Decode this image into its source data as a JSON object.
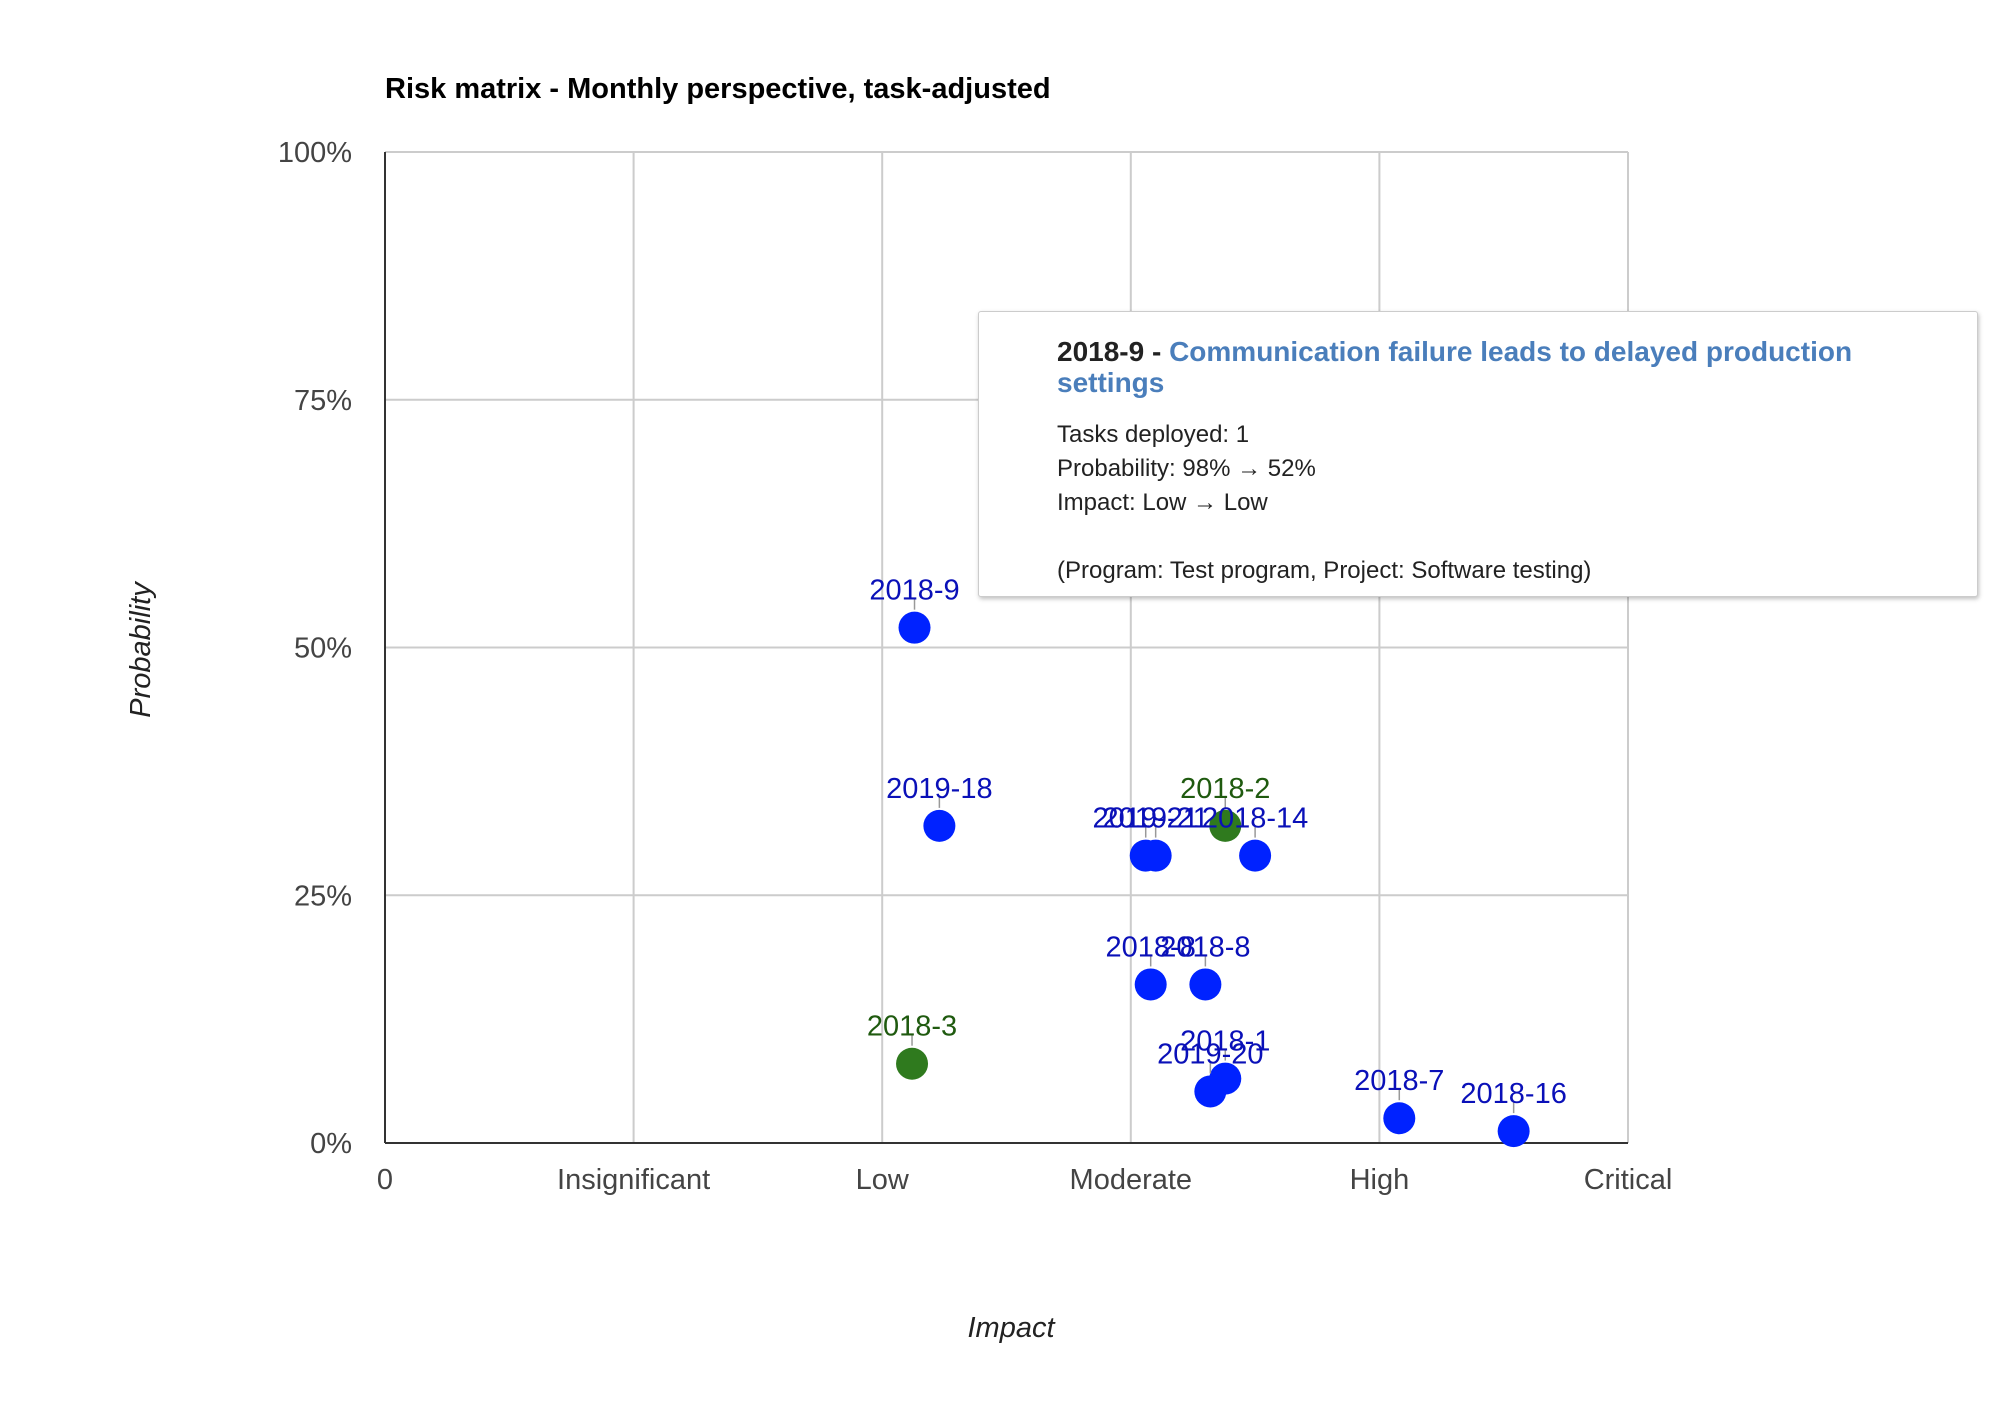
{
  "chart_data": {
    "type": "scatter",
    "title": "Risk matrix - Monthly perspective, task-adjusted",
    "xlabel": "Impact",
    "ylabel": "Probability",
    "x_ticks": [
      "0",
      "Insignificant",
      "Low",
      "Moderate",
      "High",
      "Critical"
    ],
    "y_ticks": [
      "0%",
      "25%",
      "50%",
      "75%",
      "100%"
    ],
    "xlim": [
      0,
      5
    ],
    "ylim": [
      0,
      100
    ],
    "grid": true,
    "colors": {
      "blue": "#0022ff",
      "green": "#2f7a1e",
      "blue_label": "#0a10b8",
      "green_label": "#1f5a0f"
    },
    "points": [
      {
        "label": "2018-9",
        "x": 2.13,
        "y": 52,
        "color": "blue"
      },
      {
        "label": "2019-18",
        "x": 2.23,
        "y": 32,
        "color": "blue"
      },
      {
        "label": "2018-2",
        "x": 3.38,
        "y": 32,
        "color": "green"
      },
      {
        "label": "2019-21",
        "x": 3.06,
        "y": 29,
        "color": "blue"
      },
      {
        "label": "2019-21",
        "x": 3.1,
        "y": 29,
        "color": "blue"
      },
      {
        "label": "2018-14",
        "x": 3.5,
        "y": 29,
        "color": "blue"
      },
      {
        "label": "2018-8",
        "x": 3.08,
        "y": 16,
        "color": "blue"
      },
      {
        "label": "2018-8",
        "x": 3.3,
        "y": 16,
        "color": "blue"
      },
      {
        "label": "2018-3",
        "x": 2.12,
        "y": 8,
        "color": "green"
      },
      {
        "label": "2018-1",
        "x": 3.38,
        "y": 6.5,
        "color": "blue"
      },
      {
        "label": "2019-20",
        "x": 3.32,
        "y": 5.2,
        "color": "blue"
      },
      {
        "label": "2018-7",
        "x": 4.08,
        "y": 2.5,
        "color": "blue"
      },
      {
        "label": "2018-16",
        "x": 4.54,
        "y": 1.2,
        "color": "blue"
      }
    ]
  },
  "tooltip": {
    "id": "2018-9 - ",
    "title": "Communication failure leads to delayed production settings",
    "lines": [
      "Tasks deployed: 1",
      "Probability: 98% → 52%",
      "Impact: Low → Low"
    ],
    "footer": "(Program: Test program, Project: Software testing)"
  }
}
